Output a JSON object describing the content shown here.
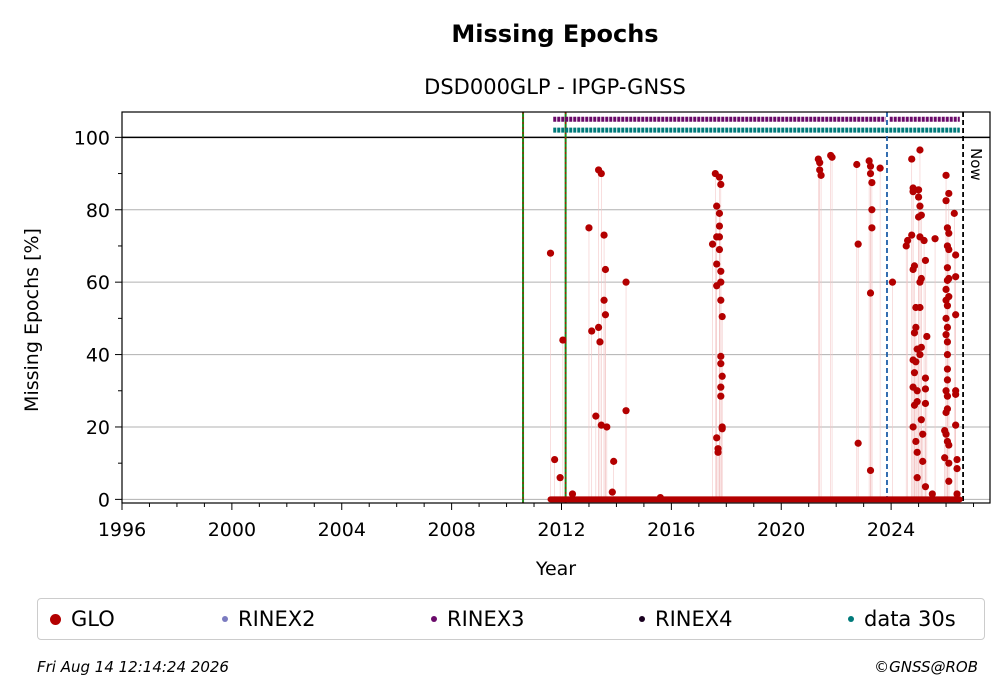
{
  "chart_data": {
    "type": "scatter",
    "title": "Missing Epochs",
    "subtitle": "DSD000GLP - IPGP-GNSS",
    "xlabel": "Year",
    "ylabel": "Missing Epochs [%]",
    "xlim": [
      1996,
      2027.6
    ],
    "ylim": [
      -1,
      107
    ],
    "xticks": [
      "1996",
      "2000",
      "2004",
      "2008",
      "2012",
      "2016",
      "2020",
      "2024"
    ],
    "yticks": [
      "0",
      "20",
      "40",
      "60",
      "80",
      "100"
    ],
    "grid": "horizontal",
    "legend_placement": "bottom",
    "now_label": "Now",
    "vlines": [
      {
        "x": 2010.6,
        "style": "green-red-dashed"
      },
      {
        "x": 2012.15,
        "style": "green-red-dashed"
      },
      {
        "x": 2023.85,
        "style": "blue-dashed"
      },
      {
        "x": 2026.62,
        "style": "black-dashed"
      }
    ],
    "series": [
      {
        "name": "GLO",
        "color": "#b30000",
        "zero_segments": [
          [
            2011.6,
            2026.5
          ]
        ],
        "points": [
          [
            2011.6,
            68
          ],
          [
            2011.75,
            11
          ],
          [
            2011.95,
            6
          ],
          [
            2012.05,
            44
          ],
          [
            2012.4,
            1.5
          ],
          [
            2013.0,
            75
          ],
          [
            2013.1,
            46.5
          ],
          [
            2013.25,
            23
          ],
          [
            2013.35,
            91
          ],
          [
            2013.35,
            47.5
          ],
          [
            2013.4,
            43.5
          ],
          [
            2013.45,
            90
          ],
          [
            2013.45,
            20.5
          ],
          [
            2013.55,
            73
          ],
          [
            2013.55,
            55
          ],
          [
            2013.6,
            63.5
          ],
          [
            2013.6,
            51
          ],
          [
            2013.65,
            20
          ],
          [
            2013.85,
            2
          ],
          [
            2013.9,
            10.5
          ],
          [
            2014.35,
            60
          ],
          [
            2014.35,
            24.5
          ],
          [
            2015.6,
            0.5
          ],
          [
            2017.5,
            70.5
          ],
          [
            2017.6,
            90
          ],
          [
            2017.65,
            81
          ],
          [
            2017.65,
            72.5
          ],
          [
            2017.65,
            65
          ],
          [
            2017.65,
            59
          ],
          [
            2017.65,
            17
          ],
          [
            2017.7,
            13
          ],
          [
            2017.7,
            14
          ],
          [
            2017.75,
            89
          ],
          [
            2017.75,
            79
          ],
          [
            2017.75,
            75.5
          ],
          [
            2017.75,
            72.5
          ],
          [
            2017.75,
            69
          ],
          [
            2017.8,
            87
          ],
          [
            2017.8,
            63
          ],
          [
            2017.8,
            60
          ],
          [
            2017.8,
            55
          ],
          [
            2017.8,
            39.5
          ],
          [
            2017.8,
            37.5
          ],
          [
            2017.8,
            31
          ],
          [
            2017.8,
            28.5
          ],
          [
            2017.85,
            50.5
          ],
          [
            2017.85,
            34
          ],
          [
            2017.85,
            20
          ],
          [
            2017.85,
            19.5
          ],
          [
            2021.35,
            94
          ],
          [
            2021.4,
            93
          ],
          [
            2021.4,
            91
          ],
          [
            2021.45,
            89.5
          ],
          [
            2021.8,
            95
          ],
          [
            2021.85,
            94.5
          ],
          [
            2022.75,
            92.5
          ],
          [
            2022.8,
            70.5
          ],
          [
            2022.8,
            15.5
          ],
          [
            2023.2,
            93.5
          ],
          [
            2023.25,
            92
          ],
          [
            2023.25,
            90
          ],
          [
            2023.3,
            87.5
          ],
          [
            2023.3,
            80
          ],
          [
            2023.3,
            75
          ],
          [
            2023.25,
            57
          ],
          [
            2023.25,
            8
          ],
          [
            2023.6,
            91.5
          ],
          [
            2024.05,
            60
          ],
          [
            2024.55,
            70
          ],
          [
            2024.6,
            71.5
          ],
          [
            2024.75,
            94
          ],
          [
            2024.8,
            86
          ],
          [
            2024.8,
            85
          ],
          [
            2024.75,
            73
          ],
          [
            2024.85,
            64.5
          ],
          [
            2024.8,
            63.5
          ],
          [
            2024.85,
            46
          ],
          [
            2024.8,
            38.5
          ],
          [
            2024.85,
            35
          ],
          [
            2024.8,
            31
          ],
          [
            2024.85,
            26
          ],
          [
            2024.8,
            20
          ],
          [
            2024.9,
            53
          ],
          [
            2024.9,
            47.5
          ],
          [
            2024.95,
            41.5
          ],
          [
            2024.9,
            38
          ],
          [
            2024.95,
            30
          ],
          [
            2024.95,
            27
          ],
          [
            2024.9,
            16
          ],
          [
            2024.95,
            13
          ],
          [
            2024.95,
            6
          ],
          [
            2025.0,
            85.5
          ],
          [
            2025.0,
            83.5
          ],
          [
            2025.0,
            78
          ],
          [
            2025.05,
            96.5
          ],
          [
            2025.05,
            81
          ],
          [
            2025.05,
            72.5
          ],
          [
            2025.05,
            53
          ],
          [
            2025.05,
            40
          ],
          [
            2025.05,
            60
          ],
          [
            2025.1,
            78.5
          ],
          [
            2025.1,
            61
          ],
          [
            2025.1,
            42
          ],
          [
            2025.1,
            22
          ],
          [
            2025.15,
            18
          ],
          [
            2025.15,
            10.5
          ],
          [
            2025.2,
            71.5
          ],
          [
            2025.25,
            66
          ],
          [
            2025.25,
            33.5
          ],
          [
            2025.25,
            30.5
          ],
          [
            2025.25,
            26.5
          ],
          [
            2025.25,
            3.5
          ],
          [
            2025.3,
            45
          ],
          [
            2025.5,
            1.5
          ],
          [
            2025.6,
            72
          ],
          [
            2025.95,
            19
          ],
          [
            2025.95,
            11.5
          ],
          [
            2026.0,
            89.5
          ],
          [
            2026.0,
            82.5
          ],
          [
            2026.0,
            58
          ],
          [
            2026.0,
            55
          ],
          [
            2026.0,
            50
          ],
          [
            2026.0,
            45.5
          ],
          [
            2026.0,
            30
          ],
          [
            2026.0,
            24
          ],
          [
            2026.0,
            18
          ],
          [
            2026.05,
            75
          ],
          [
            2026.05,
            70
          ],
          [
            2026.05,
            64
          ],
          [
            2026.05,
            60.5
          ],
          [
            2026.05,
            53.5
          ],
          [
            2026.05,
            47.5
          ],
          [
            2026.05,
            43.5
          ],
          [
            2026.05,
            40
          ],
          [
            2026.05,
            36
          ],
          [
            2026.05,
            33
          ],
          [
            2026.05,
            28.5
          ],
          [
            2026.05,
            25
          ],
          [
            2026.05,
            16
          ],
          [
            2026.1,
            84.5
          ],
          [
            2026.1,
            73.5
          ],
          [
            2026.1,
            69
          ],
          [
            2026.1,
            61
          ],
          [
            2026.1,
            56
          ],
          [
            2026.1,
            15
          ],
          [
            2026.1,
            10
          ],
          [
            2026.1,
            5
          ],
          [
            2026.3,
            79
          ],
          [
            2026.35,
            67.5
          ],
          [
            2026.35,
            61.5
          ],
          [
            2026.35,
            51
          ],
          [
            2026.35,
            30
          ],
          [
            2026.35,
            29
          ],
          [
            2026.35,
            20.5
          ],
          [
            2026.4,
            11
          ],
          [
            2026.4,
            8.5
          ],
          [
            2026.4,
            1.5
          ]
        ]
      },
      {
        "name": "RINEX2",
        "color": "#7b7bc0",
        "segments": []
      },
      {
        "name": "RINEX3",
        "color": "#6a0a6a",
        "y": 105,
        "segments": [
          [
            2011.7,
            2023.8
          ],
          [
            2023.95,
            2026.5
          ]
        ]
      },
      {
        "name": "RINEX4",
        "color": "#1a0020",
        "segments": []
      },
      {
        "name": "data 30s",
        "color": "#007a7a",
        "y": 102,
        "segments": [
          [
            2011.7,
            2026.5
          ]
        ]
      }
    ]
  },
  "legend": {
    "items": [
      {
        "label": "GLO",
        "color": "#b30000"
      },
      {
        "label": "RINEX2",
        "color": "#7b7bc0"
      },
      {
        "label": "RINEX3",
        "color": "#6a0a6a"
      },
      {
        "label": "RINEX4",
        "color": "#1a0020"
      },
      {
        "label": "data 30s",
        "color": "#007a7a"
      }
    ]
  },
  "footer": {
    "timestamp": "Fri Aug 14 12:14:24 2026",
    "copyright": "©GNSS@ROB"
  }
}
